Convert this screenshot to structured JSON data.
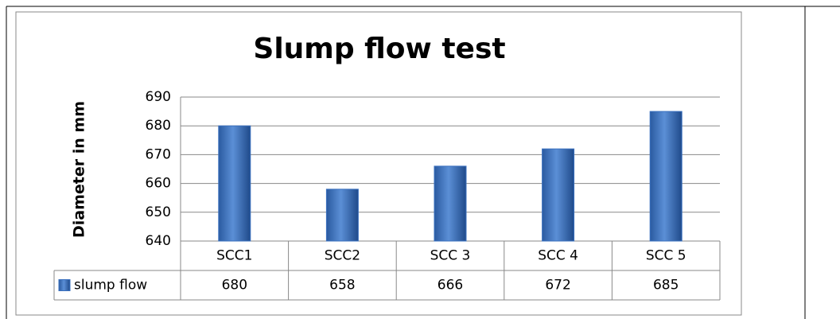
{
  "chart_data": {
    "type": "bar",
    "title": "Slump flow test",
    "y_label": "Diameter in mm",
    "categories": [
      "SCC1",
      "SCC2",
      "SCC 3",
      "SCC 4",
      "SCC 5"
    ],
    "series": [
      {
        "name": "slump flow",
        "color": "#3a70bf",
        "values": [
          680,
          658,
          666,
          672,
          685
        ]
      }
    ],
    "ylim": [
      640,
      690
    ],
    "yticks": [
      640,
      650,
      660,
      670,
      680,
      690
    ],
    "grid": true
  }
}
